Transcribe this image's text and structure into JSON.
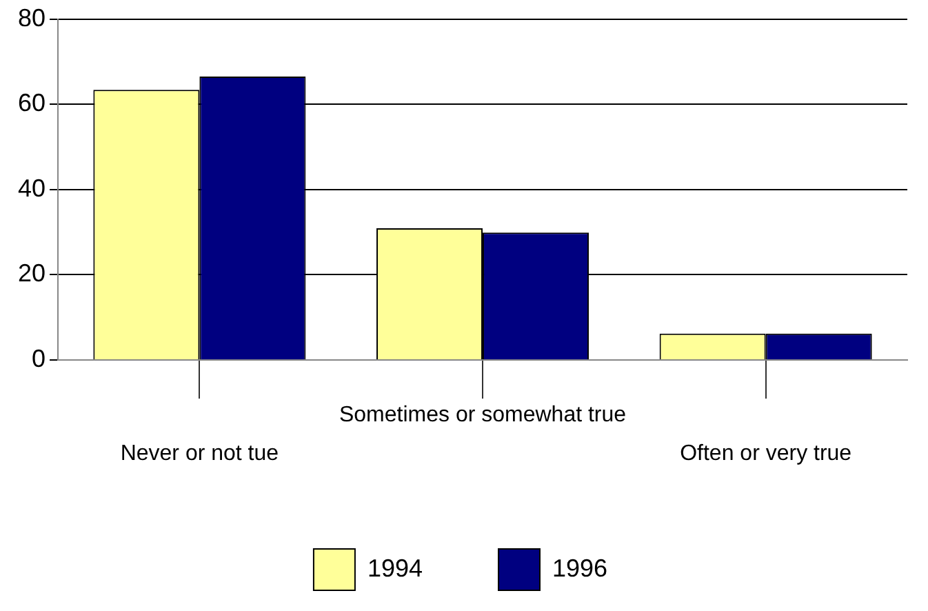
{
  "chart_data": {
    "type": "bar",
    "categories": [
      "Never or not tue",
      "Sometimes or somewhat true",
      "Often or very true"
    ],
    "series": [
      {
        "name": "1994",
        "color": "#ffff99",
        "values": [
          63.4,
          30.9,
          6.2
        ]
      },
      {
        "name": "1996",
        "color": "#000080",
        "values": [
          66.5,
          29.9,
          6.2
        ]
      }
    ],
    "ylim": [
      0,
      80
    ],
    "yticks": [
      0,
      20,
      40,
      60,
      80
    ],
    "grid": "y",
    "legend": "bottom"
  }
}
